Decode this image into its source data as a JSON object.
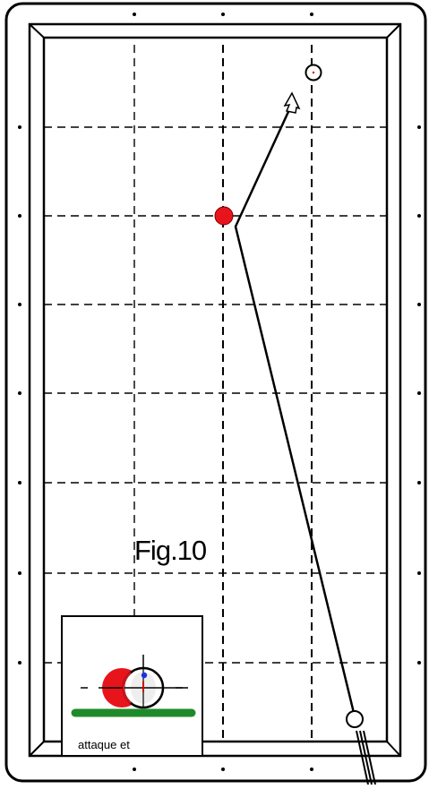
{
  "figure": {
    "label": "Fig.10",
    "inset_caption": "attaque et"
  },
  "colors": {
    "rail_stroke": "#000000",
    "cloth": "#ffffff",
    "object_ball": "#e8141c",
    "cue_ball_spot": "#d40000",
    "inset_green_bar": "#1f8a2b",
    "inset_cue_dot": "#2030e0"
  },
  "icons": {
    "diamond_markers": "dot-icon",
    "cue_stick": "cue-stick-icon",
    "direction_arrow": "arrow-icon"
  }
}
